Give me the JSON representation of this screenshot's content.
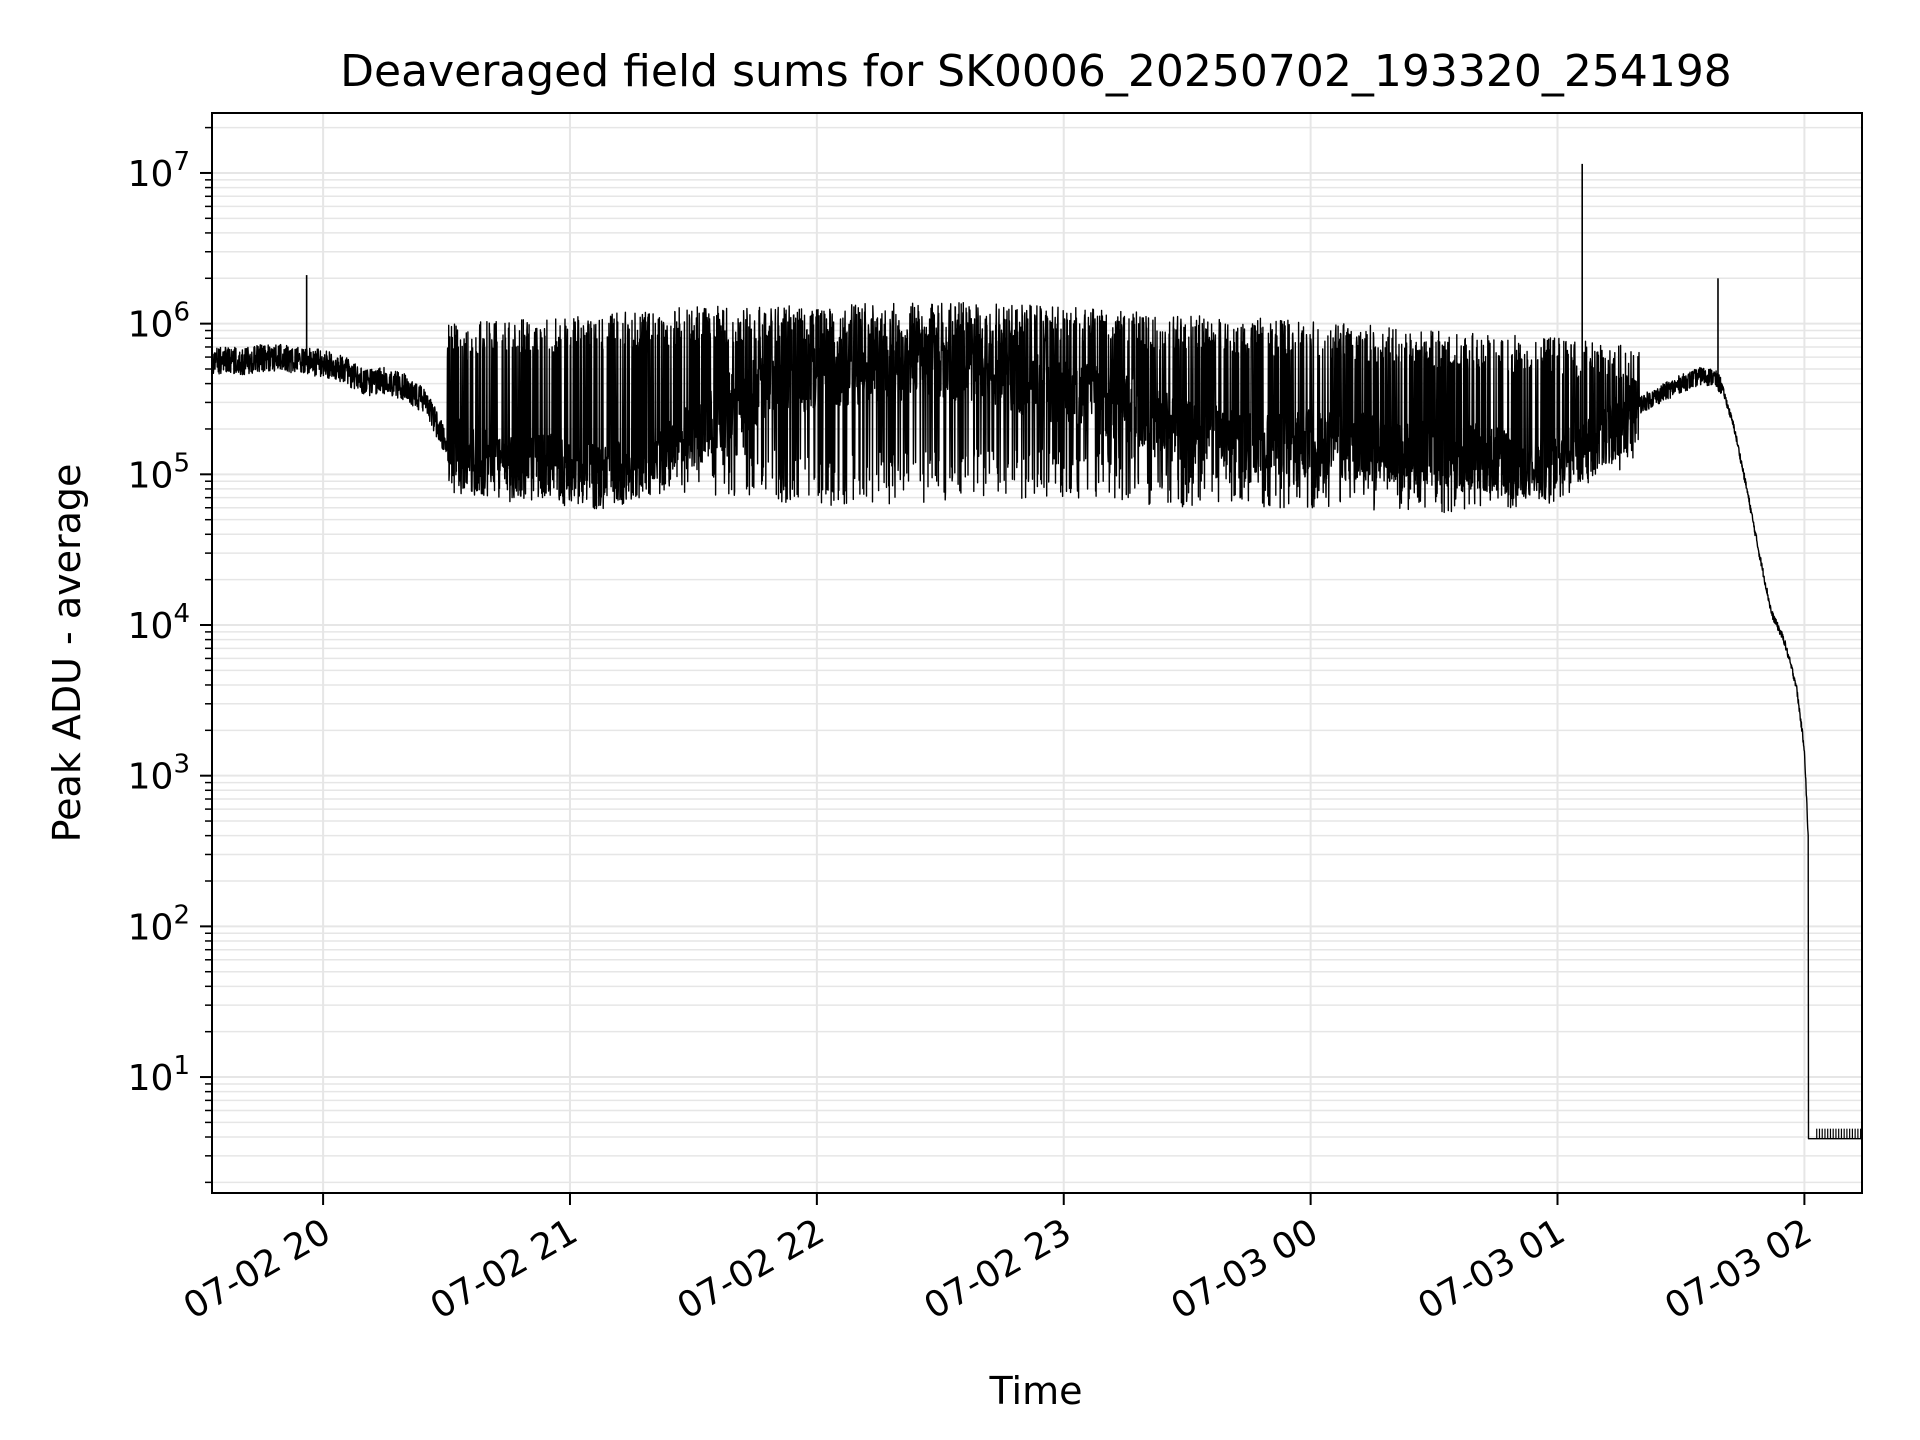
{
  "chart_data": {
    "type": "line",
    "title": "Deaveraged field sums for SK0006_20250702_193320_254198",
    "xlabel": "Time",
    "ylabel": "Peak ADU - average",
    "y_scale": "log",
    "xlim": [
      "2025-07-02 19:33",
      "2025-07-03 02:14"
    ],
    "ylim": [
      1.7,
      25000000
    ],
    "grid": "major-and-minor",
    "line_color": "#000000",
    "grid_color": "#e6e6e6",
    "x_ticks": [
      {
        "value": "2025-07-02 20:00",
        "label": "07-02 20"
      },
      {
        "value": "2025-07-02 21:00",
        "label": "07-02 21"
      },
      {
        "value": "2025-07-02 22:00",
        "label": "07-02 22"
      },
      {
        "value": "2025-07-02 23:00",
        "label": "07-02 23"
      },
      {
        "value": "2025-07-03 00:00",
        "label": "07-03 00"
      },
      {
        "value": "2025-07-03 01:00",
        "label": "07-03 01"
      },
      {
        "value": "2025-07-03 02:00",
        "label": "07-03 02"
      }
    ],
    "y_ticks": [
      {
        "value": 10,
        "base": "10",
        "exp": "1"
      },
      {
        "value": 100,
        "base": "10",
        "exp": "2"
      },
      {
        "value": 1000,
        "base": "10",
        "exp": "3"
      },
      {
        "value": 10000,
        "base": "10",
        "exp": "4"
      },
      {
        "value": 100000,
        "base": "10",
        "exp": "5"
      },
      {
        "value": 1000000,
        "base": "10",
        "exp": "6"
      },
      {
        "value": 10000000,
        "base": "10",
        "exp": "7"
      }
    ],
    "series": [
      {
        "name": "",
        "x": [
          "2025-07-02 19:33",
          "2025-07-02 19:36",
          "2025-07-02 19:40",
          "2025-07-02 19:45",
          "2025-07-02 19:50",
          "2025-07-02 19:55",
          "2025-07-02 19:59",
          "2025-07-02 20:05",
          "2025-07-02 20:10",
          "2025-07-02 20:15",
          "2025-07-02 20:20",
          "2025-07-02 20:25",
          "2025-07-02 20:30",
          "2025-07-02 20:35",
          "2025-07-02 20:40",
          "2025-07-02 20:45",
          "2025-07-02 20:50",
          "2025-07-02 20:55",
          "2025-07-02 21:00",
          "2025-07-02 21:10",
          "2025-07-02 21:20",
          "2025-07-02 21:30",
          "2025-07-02 21:40",
          "2025-07-02 21:50",
          "2025-07-02 22:00",
          "2025-07-02 22:10",
          "2025-07-02 22:20",
          "2025-07-02 22:30",
          "2025-07-02 22:40",
          "2025-07-02 22:50",
          "2025-07-02 23:00",
          "2025-07-02 23:10",
          "2025-07-02 23:20",
          "2025-07-02 23:30",
          "2025-07-02 23:40",
          "2025-07-02 23:50",
          "2025-07-03 00:00",
          "2025-07-03 00:10",
          "2025-07-03 00:20",
          "2025-07-03 00:30",
          "2025-07-03 00:40",
          "2025-07-03 00:50",
          "2025-07-03 01:00",
          "2025-07-03 01:05",
          "2025-07-03 01:10",
          "2025-07-03 01:15",
          "2025-07-03 01:20",
          "2025-07-03 01:25",
          "2025-07-03 01:30",
          "2025-07-03 01:35",
          "2025-07-03 01:38",
          "2025-07-03 01:40",
          "2025-07-03 01:43",
          "2025-07-03 01:46",
          "2025-07-03 01:49",
          "2025-07-03 01:52",
          "2025-07-03 01:55",
          "2025-07-03 01:58",
          "2025-07-03 02:00",
          "2025-07-03 02:01",
          "2025-07-03 02:02",
          "2025-07-03 02:03",
          "2025-07-03 02:06",
          "2025-07-03 02:10",
          "2025-07-03 02:14"
        ],
        "values": [
          550000,
          580000,
          560000,
          590000,
          600000,
          560000,
          550000,
          500000,
          400000,
          420000,
          380000,
          300000,
          160000,
          130000,
          120000,
          110000,
          110000,
          115000,
          100000,
          95000,
          120000,
          180000,
          300000,
          400000,
          450000,
          480000,
          500000,
          520000,
          480000,
          420000,
          350000,
          300000,
          250000,
          200000,
          180000,
          170000,
          160000,
          155000,
          150000,
          140000,
          130000,
          115000,
          110000,
          140000,
          160000,
          220000,
          290000,
          340000,
          400000,
          450000,
          440000,
          380000,
          200000,
          80000,
          30000,
          12000,
          8000,
          4000,
          1500,
          350,
          3.9,
          3.9,
          3.9,
          3.9,
          3.9
        ]
      }
    ],
    "notable_spikes": [
      {
        "x": "2025-07-02 19:56",
        "y": 2100000
      },
      {
        "x": "2025-07-03 01:06",
        "y": 11500000
      },
      {
        "x": "2025-07-03 01:39",
        "y": 2000000
      }
    ],
    "spike_envelope": {
      "x": [
        "2025-07-02 20:30",
        "2025-07-02 21:00",
        "2025-07-02 21:30",
        "2025-07-02 22:00",
        "2025-07-02 22:30",
        "2025-07-02 23:00",
        "2025-07-02 23:30",
        "2025-07-03 00:00",
        "2025-07-03 00:30",
        "2025-07-03 01:00",
        "2025-07-03 01:20"
      ],
      "upper": [
        1000000,
        1100000,
        1300000,
        1350000,
        1400000,
        1300000,
        1150000,
        1050000,
        900000,
        800000,
        700000
      ],
      "lower": [
        70000,
        70000,
        75000,
        60000,
        65000,
        70000,
        60000,
        60000,
        55000,
        60000,
        120000
      ]
    }
  }
}
